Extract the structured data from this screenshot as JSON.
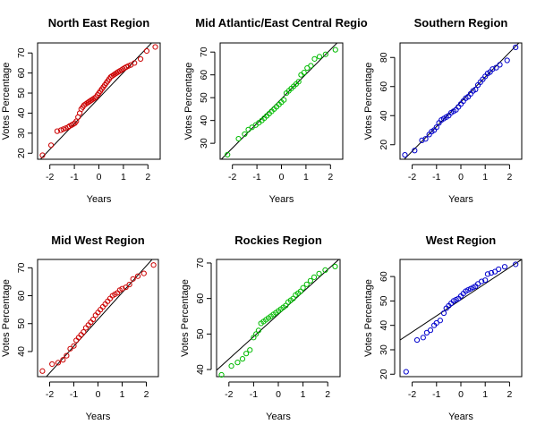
{
  "figure": {
    "background": "#ffffff"
  },
  "chart_data": [
    {
      "type": "scatter",
      "title": "North East Region",
      "xlabel": "Years",
      "ylabel": "Votes Percentage",
      "xlim": [
        -2.5,
        2.5
      ],
      "ylim": [
        17,
        75
      ],
      "xticks": [
        -2,
        -1,
        0,
        1,
        2
      ],
      "xtick_labels": [
        "-2",
        "-1",
        "0",
        "1",
        "2"
      ],
      "yticks": [
        20,
        30,
        40,
        50,
        60,
        70
      ],
      "ytick_labels": [
        "20",
        "30",
        "40",
        "50",
        "60",
        "70"
      ],
      "color": "#cc0000",
      "line": {
        "color": "#000000",
        "x": [
          -2.5,
          2.5
        ],
        "y": [
          15.5,
          79.5
        ]
      },
      "series": [
        {
          "x": [
            -2.3,
            -1.95,
            -1.7,
            -1.55,
            -1.45,
            -1.35,
            -1.25,
            -1.2,
            -1.12,
            -1.05,
            -0.98,
            -0.92,
            -0.85,
            -0.78,
            -0.72,
            -0.66,
            -0.6,
            -0.54,
            -0.48,
            -0.42,
            -0.36,
            -0.3,
            -0.24,
            -0.18,
            -0.12,
            -0.06,
            0.0,
            0.06,
            0.12,
            0.18,
            0.24,
            0.3,
            0.36,
            0.42,
            0.48,
            0.54,
            0.6,
            0.66,
            0.72,
            0.78,
            0.85,
            0.92,
            0.98,
            1.05,
            1.12,
            1.2,
            1.3,
            1.45,
            1.7,
            1.95,
            2.3
          ],
          "y": [
            19,
            24,
            31,
            31.5,
            32,
            32.5,
            33,
            33.5,
            34,
            34.5,
            35,
            36,
            38,
            40,
            42,
            43,
            44,
            44.5,
            45,
            45.5,
            46,
            46.5,
            47,
            47.5,
            48,
            49,
            50,
            51,
            52,
            53,
            54,
            55,
            56,
            57,
            58,
            58.5,
            59,
            59.5,
            60,
            60.5,
            61,
            61.5,
            62,
            62.5,
            63,
            63.5,
            64,
            65,
            67,
            71,
            73
          ]
        }
      ]
    },
    {
      "type": "scatter",
      "title": "Mid Atlantic/East Central Regio",
      "xlabel": "Years",
      "ylabel": "Votes Percentage",
      "xlim": [
        -2.5,
        2.5
      ],
      "ylim": [
        23,
        74
      ],
      "xticks": [
        -2,
        -1,
        0,
        1,
        2
      ],
      "xtick_labels": [
        "-2",
        "-1",
        "0",
        "1",
        "2"
      ],
      "yticks": [
        30,
        40,
        50,
        60,
        70
      ],
      "ytick_labels": [
        "30",
        "40",
        "50",
        "60",
        "70"
      ],
      "color": "#00bb00",
      "line": {
        "color": "#000000",
        "x": [
          -2.5,
          2.5
        ],
        "y": [
          22.5,
          76.5
        ]
      },
      "series": [
        {
          "x": [
            -2.2,
            -1.75,
            -1.5,
            -1.35,
            -1.2,
            -1.05,
            -0.92,
            -0.8,
            -0.7,
            -0.6,
            -0.5,
            -0.4,
            -0.3,
            -0.2,
            -0.1,
            0.0,
            0.1,
            0.2,
            0.3,
            0.4,
            0.5,
            0.6,
            0.7,
            0.8,
            0.92,
            1.05,
            1.2,
            1.35,
            1.55,
            1.8,
            2.2
          ],
          "y": [
            25,
            32,
            34,
            36,
            37,
            38,
            39,
            40,
            41,
            42,
            43,
            44,
            45,
            46,
            47,
            48,
            49,
            52,
            53,
            54,
            55,
            56,
            57,
            60,
            61,
            63,
            64,
            67,
            68,
            69,
            71
          ]
        }
      ]
    },
    {
      "type": "scatter",
      "title": "Southern Region",
      "xlabel": "Years",
      "ylabel": "Votes Percentage",
      "xlim": [
        -2.5,
        2.5
      ],
      "ylim": [
        10,
        90
      ],
      "xticks": [
        -2,
        -1,
        0,
        1,
        2
      ],
      "xtick_labels": [
        "-2",
        "-1",
        "0",
        "1",
        "2"
      ],
      "yticks": [
        20,
        40,
        60,
        80
      ],
      "ytick_labels": [
        "20",
        "40",
        "60",
        "80"
      ],
      "color": "#0000cc",
      "line": {
        "color": "#000000",
        "x": [
          -2.5,
          2.5
        ],
        "y": [
          7,
          92
        ]
      },
      "series": [
        {
          "x": [
            -2.3,
            -1.9,
            -1.6,
            -1.45,
            -1.3,
            -1.2,
            -1.1,
            -1.0,
            -0.9,
            -0.8,
            -0.7,
            -0.6,
            -0.5,
            -0.4,
            -0.3,
            -0.2,
            -0.1,
            0.0,
            0.1,
            0.2,
            0.3,
            0.4,
            0.5,
            0.6,
            0.7,
            0.8,
            0.9,
            1.0,
            1.1,
            1.2,
            1.3,
            1.45,
            1.6,
            1.9,
            2.25
          ],
          "y": [
            13,
            16,
            23,
            24,
            27,
            29,
            30,
            32,
            35,
            37,
            38,
            39,
            40,
            42,
            43,
            44,
            46,
            48,
            50,
            52,
            53,
            55,
            57,
            58,
            61,
            63,
            65,
            67,
            69,
            70,
            72,
            73,
            75,
            78,
            87
          ]
        }
      ]
    },
    {
      "type": "scatter",
      "title": "Mid West Region",
      "xlabel": "Years",
      "ylabel": "Votes Percentage",
      "xlim": [
        -2.5,
        2.5
      ],
      "ylim": [
        31,
        73
      ],
      "xticks": [
        -2,
        -1,
        0,
        1,
        2
      ],
      "xtick_labels": [
        "-2",
        "-1",
        "0",
        "1",
        "2"
      ],
      "yticks": [
        40,
        50,
        60,
        70
      ],
      "ytick_labels": [
        "40",
        "50",
        "60",
        "70"
      ],
      "color": "#cc0000",
      "line": {
        "color": "#000000",
        "x": [
          -2.5,
          2.5
        ],
        "y": [
          27.5,
          75.5
        ]
      },
      "series": [
        {
          "x": [
            -2.3,
            -1.9,
            -1.65,
            -1.45,
            -1.3,
            -1.15,
            -1.0,
            -0.9,
            -0.8,
            -0.7,
            -0.6,
            -0.5,
            -0.4,
            -0.3,
            -0.2,
            -0.1,
            0.0,
            0.1,
            0.2,
            0.3,
            0.4,
            0.5,
            0.6,
            0.7,
            0.8,
            0.9,
            1.0,
            1.15,
            1.3,
            1.45,
            1.65,
            1.9,
            2.3
          ],
          "y": [
            33,
            35.5,
            36,
            37,
            38.5,
            41,
            42,
            44,
            45,
            46,
            47,
            48.5,
            49.5,
            50.5,
            51.5,
            53,
            54,
            55,
            56,
            57,
            58,
            59,
            60,
            60.5,
            61,
            62,
            62.5,
            63,
            64,
            66,
            67,
            68,
            71
          ]
        }
      ]
    },
    {
      "type": "scatter",
      "title": "Rockies Region",
      "xlabel": "Years",
      "ylabel": "Votes Percentage",
      "xlim": [
        -2.5,
        2.5
      ],
      "ylim": [
        38,
        71
      ],
      "xticks": [
        -2,
        -1,
        0,
        1,
        2
      ],
      "xtick_labels": [
        "-2",
        "-1",
        "0",
        "1",
        "2"
      ],
      "yticks": [
        40,
        50,
        60,
        70
      ],
      "ytick_labels": [
        "40",
        "50",
        "60",
        "70"
      ],
      "color": "#00bb00",
      "line": {
        "color": "#000000",
        "x": [
          -2.5,
          2.5
        ],
        "y": [
          39.8,
          71.3
        ]
      },
      "series": [
        {
          "x": [
            -2.3,
            -1.9,
            -1.65,
            -1.45,
            -1.3,
            -1.15,
            -1.0,
            -0.9,
            -0.8,
            -0.7,
            -0.6,
            -0.5,
            -0.4,
            -0.3,
            -0.2,
            -0.1,
            0.0,
            0.1,
            0.2,
            0.3,
            0.4,
            0.5,
            0.6,
            0.7,
            0.8,
            0.9,
            1.0,
            1.15,
            1.3,
            1.45,
            1.65,
            1.9,
            2.3
          ],
          "y": [
            38.5,
            41,
            42,
            43,
            44.5,
            45.5,
            49,
            50,
            51,
            53,
            53.5,
            54,
            54.5,
            55,
            55.5,
            56,
            56.5,
            57,
            57.5,
            58,
            59,
            59.5,
            60,
            61,
            61.5,
            62,
            63,
            64,
            65,
            66,
            67,
            68,
            69
          ]
        }
      ]
    },
    {
      "type": "scatter",
      "title": "West Region",
      "xlabel": "Years",
      "ylabel": "Votes Percentage",
      "xlim": [
        -2.5,
        2.5
      ],
      "ylim": [
        19,
        67
      ],
      "xticks": [
        -2,
        -1,
        0,
        1,
        2
      ],
      "xtick_labels": [
        "-2",
        "-1",
        "0",
        "1",
        "2"
      ],
      "yticks": [
        20,
        30,
        40,
        50,
        60
      ],
      "ytick_labels": [
        "20",
        "30",
        "40",
        "50",
        "60"
      ],
      "color": "#0000cc",
      "line": {
        "color": "#000000",
        "x": [
          -2.5,
          2.5
        ],
        "y": [
          34,
          67
        ]
      },
      "series": [
        {
          "x": [
            -2.25,
            -1.8,
            -1.55,
            -1.4,
            -1.25,
            -1.1,
            -1.0,
            -0.85,
            -0.7,
            -0.6,
            -0.5,
            -0.4,
            -0.3,
            -0.2,
            -0.1,
            0.0,
            0.1,
            0.2,
            0.3,
            0.4,
            0.5,
            0.6,
            0.7,
            0.85,
            1.0,
            1.1,
            1.25,
            1.4,
            1.55,
            1.8,
            2.25
          ],
          "y": [
            21,
            34,
            35,
            37,
            38,
            40,
            41,
            42,
            45,
            47,
            48,
            49,
            50,
            50.5,
            51,
            52,
            53,
            54,
            54.5,
            55,
            55.5,
            56,
            57,
            58,
            58.5,
            61,
            61.5,
            62,
            63,
            64,
            65
          ]
        }
      ]
    }
  ]
}
